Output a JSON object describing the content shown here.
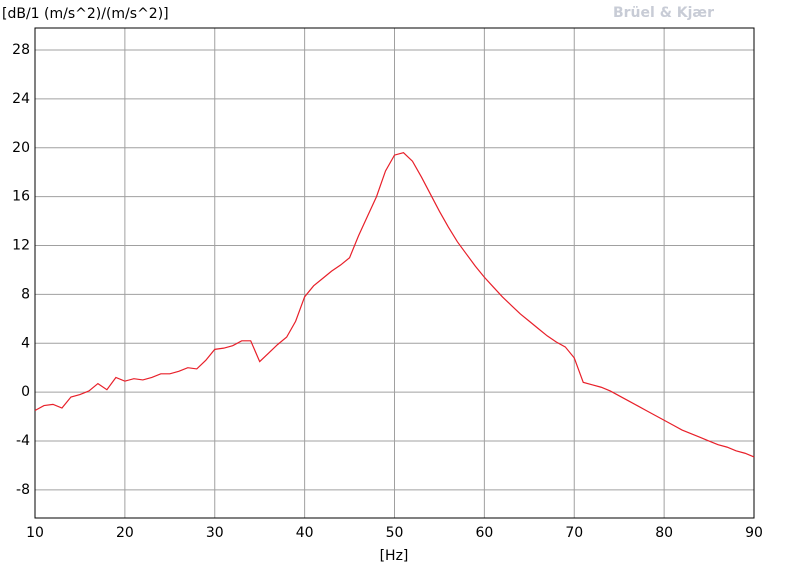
{
  "chart_data": {
    "type": "line",
    "ylabel": "[dB/1 (m/s^2)/(m/s^2)]",
    "xlabel": "[Hz]",
    "brand": "Brüel & Kjær",
    "x": [
      10,
      11,
      12,
      13,
      14,
      15,
      16,
      17,
      18,
      19,
      20,
      21,
      22,
      23,
      24,
      25,
      26,
      27,
      28,
      29,
      30,
      31,
      32,
      33,
      34,
      35,
      36,
      37,
      38,
      39,
      40,
      41,
      42,
      43,
      44,
      45,
      46,
      47,
      48,
      49,
      50,
      51,
      52,
      53,
      54,
      55,
      56,
      57,
      58,
      59,
      60,
      61,
      62,
      63,
      64,
      65,
      66,
      67,
      68,
      69,
      70,
      71,
      72,
      73,
      74,
      75,
      76,
      77,
      78,
      79,
      80,
      81,
      82,
      83,
      84,
      85,
      86,
      87,
      88,
      89,
      90
    ],
    "series": [
      {
        "color": "#e8202a",
        "values": [
          -1.5,
          -1.1,
          -1.0,
          -1.3,
          -0.4,
          -0.2,
          0.1,
          0.7,
          0.2,
          1.2,
          0.9,
          1.1,
          1.0,
          1.2,
          1.5,
          1.5,
          1.7,
          2.0,
          1.9,
          2.6,
          3.5,
          3.6,
          3.8,
          4.2,
          4.2,
          2.5,
          3.2,
          3.9,
          4.5,
          5.8,
          7.8,
          8.7,
          9.3,
          9.9,
          10.4,
          11.0,
          12.8,
          14.4,
          16.0,
          18.1,
          19.4,
          19.6,
          18.9,
          17.6,
          16.2,
          14.8,
          13.5,
          12.3,
          11.3,
          10.3,
          9.4,
          8.6,
          7.8,
          7.1,
          6.4,
          5.8,
          5.2,
          4.6,
          4.1,
          3.7,
          2.8,
          0.8,
          0.6,
          0.4,
          0.1,
          -0.3,
          -0.7,
          -1.1,
          -1.5,
          -1.9,
          -2.3,
          -2.7,
          -3.1,
          -3.4,
          -3.7,
          -4.0,
          -4.3,
          -4.5,
          -4.8,
          -5.0,
          -5.3
        ]
      }
    ],
    "xlim": [
      10,
      90
    ],
    "xticks": [
      10,
      20,
      30,
      40,
      50,
      60,
      70,
      80,
      90
    ],
    "ylim": [
      -10.3,
      29.8
    ],
    "yticks": [
      -8,
      -4,
      0,
      4,
      8,
      12,
      16,
      20,
      24,
      28
    ],
    "grid": true
  }
}
